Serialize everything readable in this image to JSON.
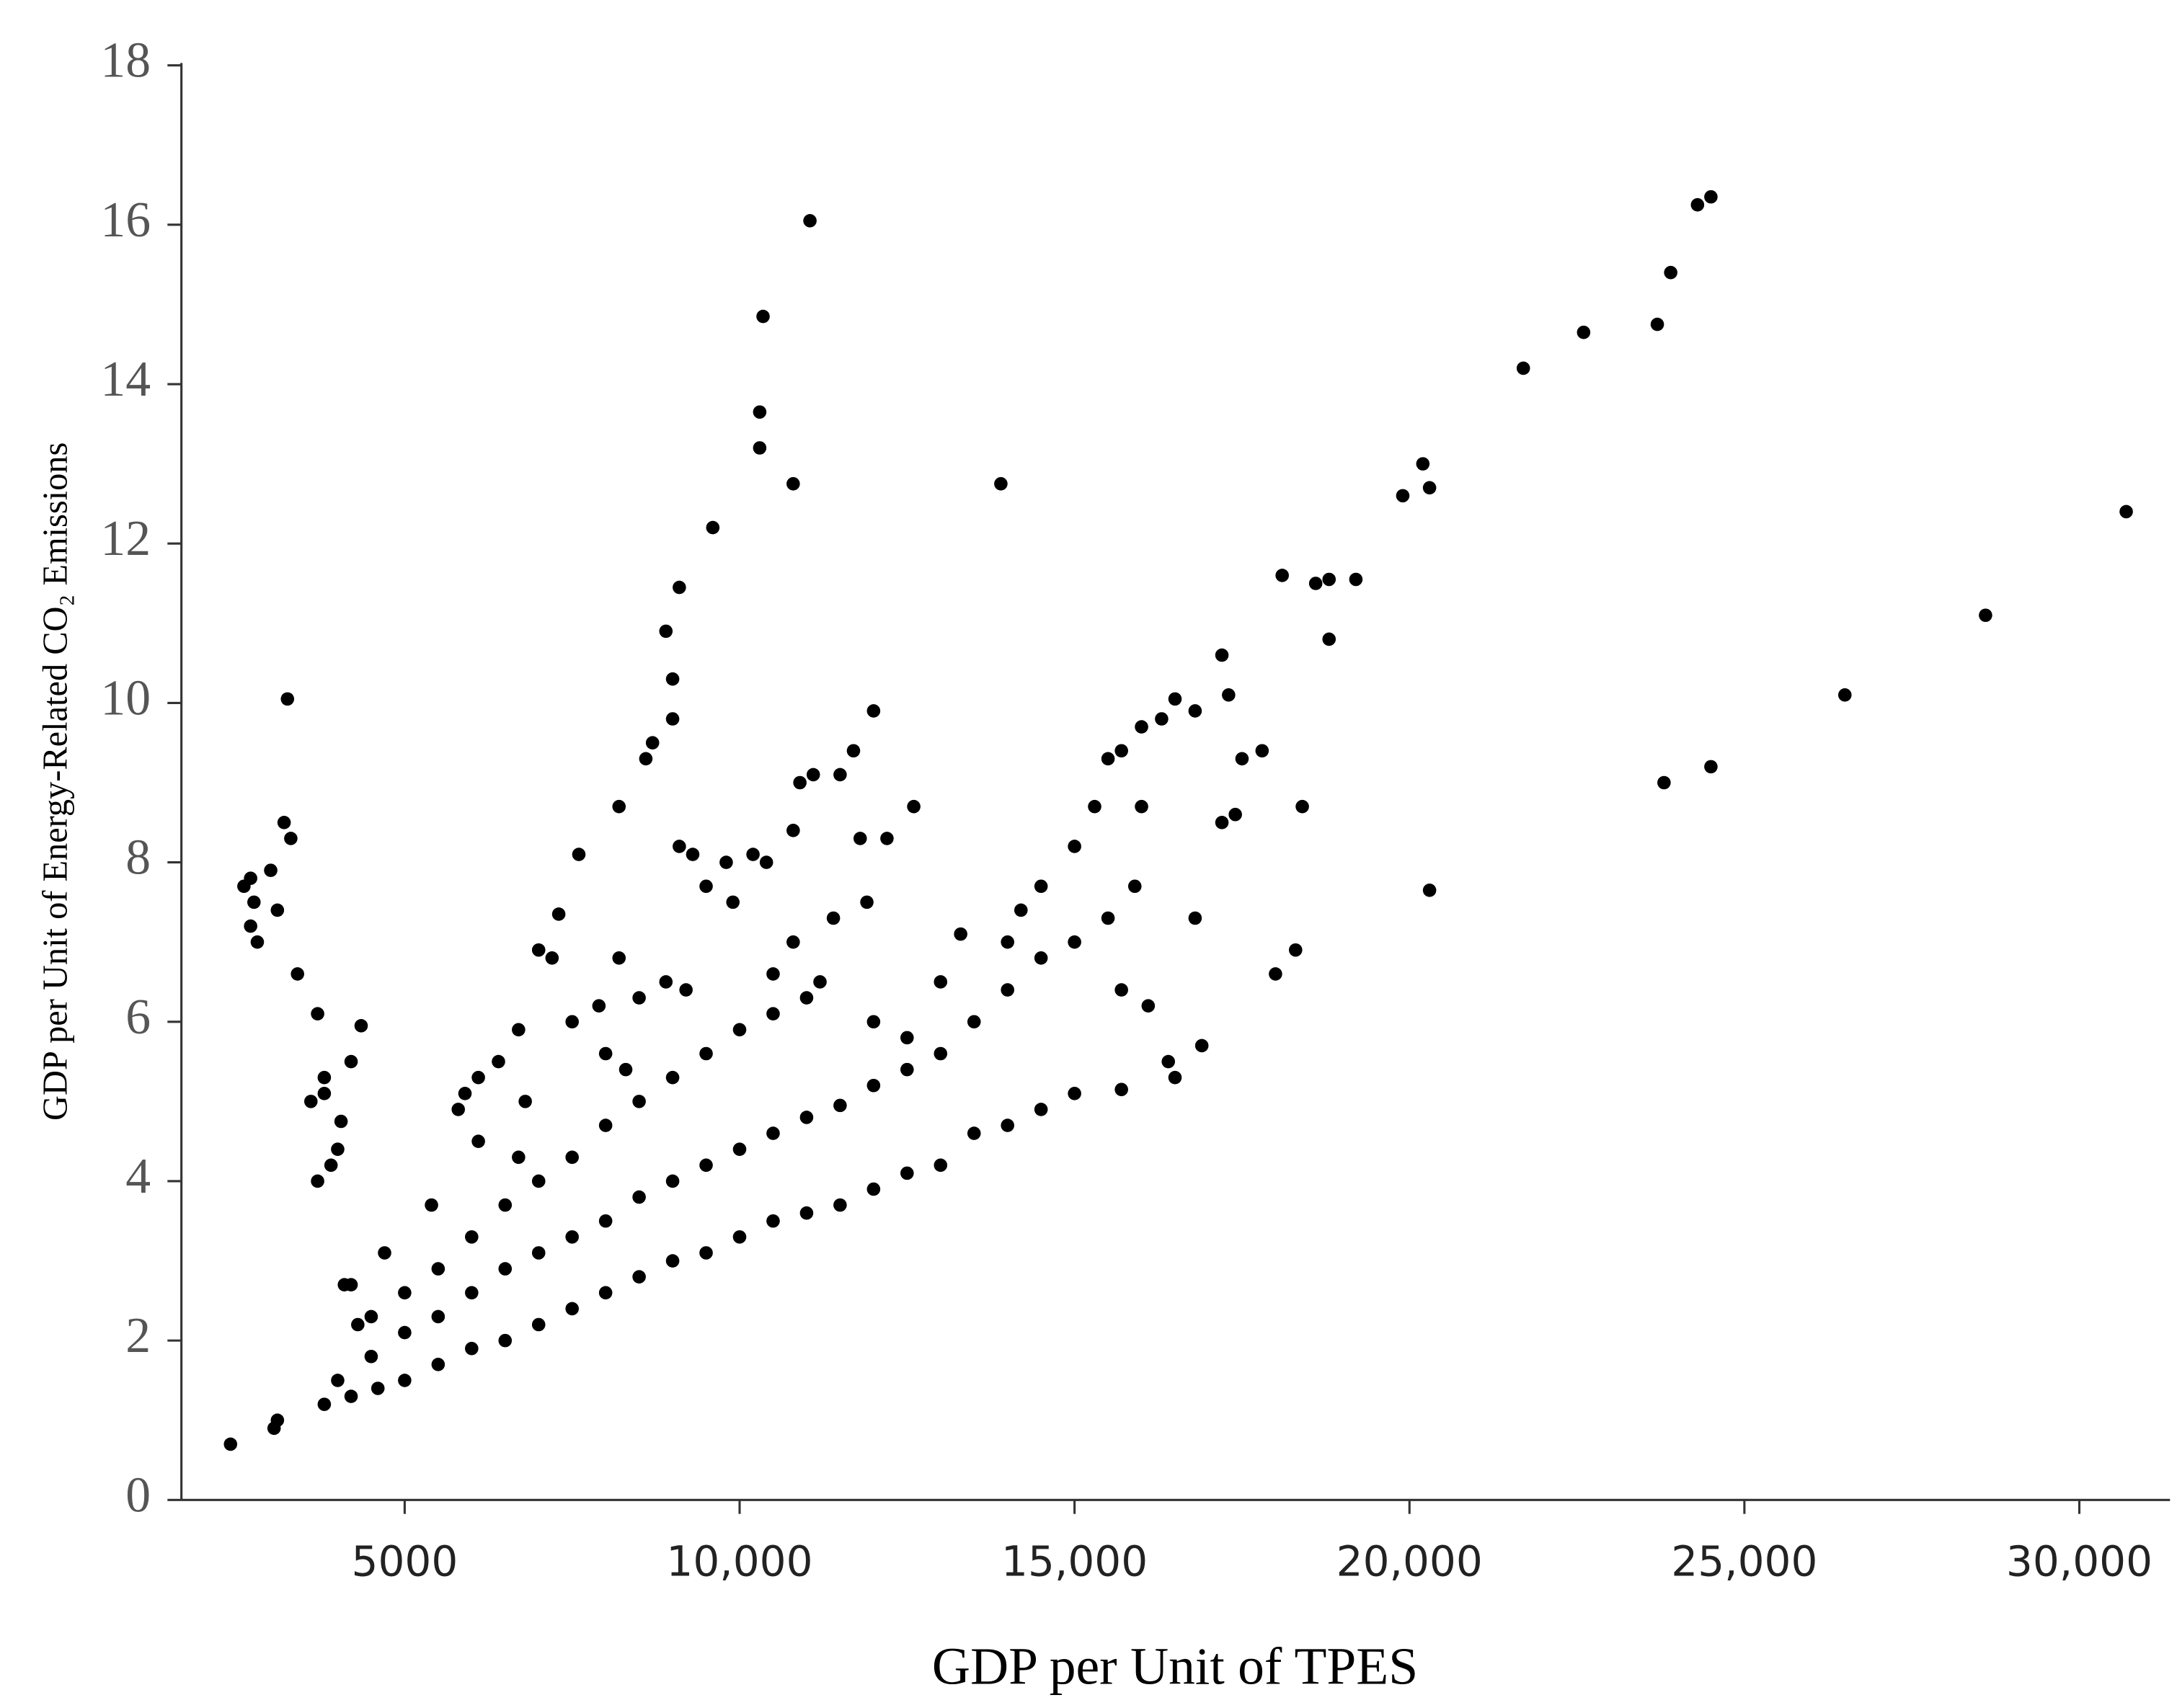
{
  "chart_data": {
    "type": "scatter",
    "xlabel": "GDP per Unit of TPES",
    "ylabel": "GDP per Unit of Energy-Related CO₂ Emissions",
    "xlim": [
      1667,
      31354
    ],
    "ylim": [
      0,
      18.03
    ],
    "xticks": [
      5000,
      {
        "value": 10000,
        "label": "10,000"
      },
      {
        "value": 15000,
        "label": "15,000"
      },
      {
        "value": 20000,
        "label": "20,000"
      },
      {
        "value": 25000,
        "label": "25,000"
      },
      {
        "value": 30000,
        "label": "30,000"
      }
    ],
    "yticks": [
      0,
      2,
      4,
      6,
      8,
      10,
      12,
      14,
      16,
      18
    ],
    "series": [
      {
        "color": "#000000",
        "x": [
          2400,
          3050,
          3100,
          2600,
          2700,
          2750,
          2700,
          2800,
          3000,
          3100,
          3200,
          3300,
          3250,
          3400,
          3700,
          3600,
          3800,
          3800,
          3700,
          3900,
          4000,
          4050,
          4200,
          4350,
          4100,
          4200,
          4300,
          6100,
          6400,
          6700,
          7000,
          7300,
          7200,
          7600,
          8200,
          8600,
          8700,
          8900,
          9000,
          9000,
          9100,
          9600,
          10300,
          10300,
          10350,
          10800,
          11050,
          13900,
          9100,
          9300,
          9500,
          9800,
          10200,
          10400,
          10800,
          10900,
          11100,
          11500,
          11700,
          12000,
          11800,
          12200,
          12600,
          11900,
          11400,
          10500,
          11200,
          10800,
          9900,
          9200,
          8900,
          8200,
          8500,
          7900,
          7500,
          8000,
          8300,
          6800,
          6700,
          5800,
          5900,
          6100,
          14500,
          15000,
          15300,
          15500,
          15700,
          16000,
          16300,
          16500,
          16800,
          17200,
          17300,
          17500,
          17800,
          17200,
          17400,
          16800,
          16000,
          15900,
          15700,
          16100,
          16400,
          16500,
          16900,
          15700,
          18100,
          18600,
          18800,
          19200,
          18800,
          18400,
          18300,
          18000,
          19900,
          20200,
          20300,
          20300,
          21700,
          22600,
          23700,
          23900,
          24300,
          24500,
          23800,
          24500,
          26500,
          28600,
          30700,
          3800,
          4200,
          4600,
          5000,
          5500,
          6000,
          6500,
          7000,
          7500,
          8000,
          8500,
          9000,
          9500,
          10000,
          10500,
          11000,
          11500,
          12000,
          12500,
          13000,
          13500,
          14000,
          14500,
          15000,
          4000,
          4500,
          5000,
          5500,
          6000,
          6500,
          7000,
          7500,
          8000,
          8500,
          9000,
          9500,
          10000,
          10500,
          11000,
          11500,
          12000,
          12500,
          13000,
          13500,
          14000,
          14500,
          15000,
          15500,
          4500,
          5000,
          5500,
          6000,
          6500,
          7000,
          7500,
          8000,
          8500,
          9000,
          9500,
          10000,
          10500,
          11000,
          12000,
          12500,
          13000,
          13300,
          14000,
          14200,
          4700,
          5400
        ],
        "values": [
          0.7,
          0.9,
          1.0,
          7.7,
          7.8,
          7.5,
          7.2,
          7.0,
          7.9,
          7.4,
          8.5,
          8.3,
          10.05,
          6.6,
          6.1,
          5.0,
          5.3,
          5.1,
          4.0,
          4.2,
          4.4,
          4.75,
          5.5,
          5.95,
          2.7,
          2.7,
          2.2,
          5.3,
          5.5,
          5.9,
          6.9,
          7.35,
          6.8,
          8.1,
          8.7,
          9.3,
          9.5,
          10.9,
          10.3,
          9.8,
          11.45,
          12.2,
          13.65,
          13.2,
          14.85,
          12.75,
          16.05,
          12.75,
          8.2,
          8.1,
          7.7,
          8.0,
          8.1,
          8.0,
          8.4,
          9.0,
          9.1,
          9.1,
          9.4,
          9.9,
          8.3,
          8.3,
          8.7,
          7.5,
          7.3,
          6.6,
          6.5,
          7.0,
          7.5,
          6.4,
          6.5,
          6.8,
          6.3,
          6.2,
          6.0,
          5.6,
          5.4,
          5.0,
          4.3,
          4.9,
          5.1,
          4.5,
          7.7,
          8.2,
          8.7,
          9.3,
          9.4,
          9.7,
          9.8,
          10.05,
          9.9,
          10.6,
          10.1,
          9.3,
          9.4,
          8.5,
          8.6,
          7.3,
          8.7,
          7.7,
          6.4,
          6.2,
          5.5,
          5.3,
          5.7,
          5.15,
          11.6,
          11.5,
          11.55,
          11.55,
          10.8,
          8.7,
          6.9,
          6.6,
          12.6,
          13.0,
          12.7,
          7.65,
          14.2,
          14.65,
          14.75,
          15.4,
          16.25,
          16.35,
          9.0,
          9.2,
          10.1,
          11.1,
          12.4,
          1.2,
          1.3,
          1.4,
          1.5,
          1.7,
          1.9,
          2.0,
          2.2,
          2.4,
          2.6,
          2.8,
          3.0,
          3.1,
          3.3,
          3.5,
          3.6,
          3.7,
          3.9,
          4.1,
          4.2,
          4.6,
          4.7,
          4.9,
          5.1,
          1.5,
          1.8,
          2.1,
          2.3,
          2.6,
          2.9,
          3.1,
          3.3,
          3.5,
          3.8,
          4.0,
          4.2,
          4.4,
          4.6,
          4.8,
          4.95,
          5.2,
          5.4,
          5.6,
          6.0,
          6.4,
          6.8,
          7.0,
          7.3,
          2.3,
          2.6,
          2.9,
          3.3,
          3.7,
          4.0,
          4.3,
          4.7,
          5.0,
          5.3,
          5.6,
          5.9,
          6.1,
          6.3,
          6.0,
          5.8,
          6.5,
          7.1,
          7.0,
          7.4,
          3.1,
          3.7
        ]
      }
    ]
  }
}
